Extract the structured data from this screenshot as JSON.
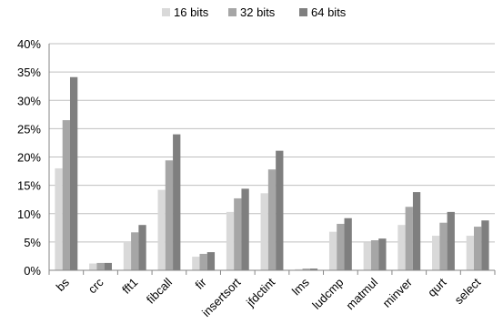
{
  "chart_data": {
    "type": "bar",
    "title": "",
    "xlabel": "",
    "ylabel": "",
    "ylim": [
      0,
      40
    ],
    "y_tick_labels": [
      "0%",
      "5%",
      "10%",
      "15%",
      "20%",
      "25%",
      "30%",
      "35%",
      "40%"
    ],
    "y_ticks": [
      0,
      5,
      10,
      15,
      20,
      25,
      30,
      35,
      40
    ],
    "grid": true,
    "legend_position": "top",
    "categories": [
      "bs",
      "crc",
      "fft1",
      "fibcall",
      "fir",
      "insertsort",
      "jfdctint",
      "lms",
      "ludcmp",
      "matmul",
      "minver",
      "qurt",
      "select"
    ],
    "series": [
      {
        "name": "16 bits",
        "color": "#d9d9d9",
        "values": [
          18.0,
          1.2,
          5.0,
          14.2,
          2.4,
          10.3,
          13.6,
          0.2,
          6.8,
          4.9,
          8.0,
          6.1,
          6.1
        ]
      },
      {
        "name": "32 bits",
        "color": "#a6a6a6",
        "values": [
          26.5,
          1.3,
          6.7,
          19.4,
          2.9,
          12.7,
          17.8,
          0.3,
          8.2,
          5.3,
          11.2,
          8.4,
          7.7
        ]
      },
      {
        "name": "64 bits",
        "color": "#7f7f7f",
        "values": [
          34.1,
          1.3,
          8.0,
          24.0,
          3.2,
          14.4,
          21.1,
          0.3,
          9.2,
          5.6,
          13.8,
          10.3,
          8.8
        ]
      }
    ]
  }
}
